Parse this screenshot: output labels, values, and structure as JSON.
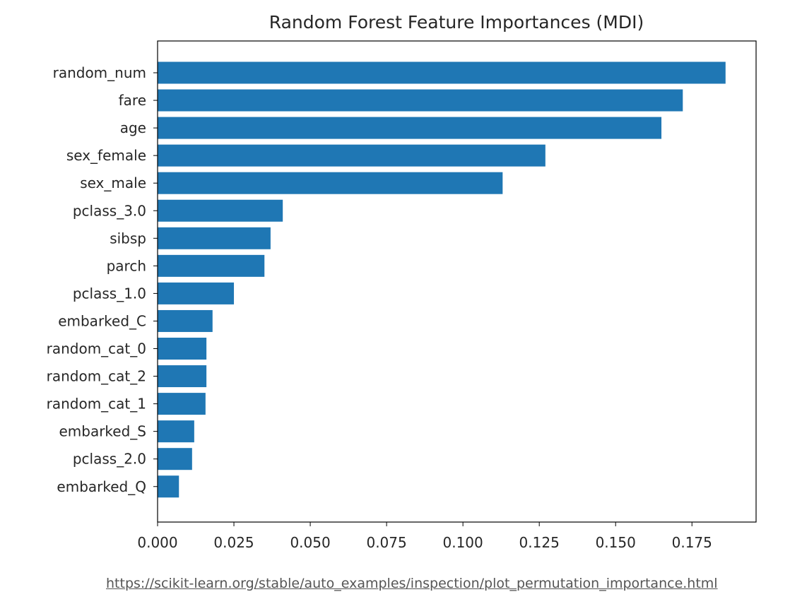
{
  "chart_data": {
    "type": "bar",
    "orientation": "horizontal",
    "title": "Random Forest Feature Importances (MDI)",
    "xlabel": "",
    "ylabel": "",
    "xlim": [
      0,
      0.196
    ],
    "x_ticks": [
      "0.000",
      "0.025",
      "0.050",
      "0.075",
      "0.100",
      "0.125",
      "0.150",
      "0.175"
    ],
    "x_tick_values": [
      0,
      0.025,
      0.05,
      0.075,
      0.1,
      0.125,
      0.15,
      0.175
    ],
    "grid": false,
    "legend": "none",
    "bar_color": "#1f77b4",
    "categories": [
      "random_num",
      "fare",
      "age",
      "sex_female",
      "sex_male",
      "pclass_3.0",
      "sibsp",
      "parch",
      "pclass_1.0",
      "embarked_C",
      "random_cat_0",
      "random_cat_2",
      "random_cat_1",
      "embarked_S",
      "pclass_2.0",
      "embarked_Q"
    ],
    "values": [
      0.186,
      0.172,
      0.165,
      0.127,
      0.113,
      0.041,
      0.037,
      0.035,
      0.025,
      0.018,
      0.016,
      0.016,
      0.0157,
      0.012,
      0.0113,
      0.007
    ]
  },
  "source": {
    "url_text": "https://scikit-learn.org/stable/auto_examples/inspection/plot_permutation_importance.html"
  }
}
